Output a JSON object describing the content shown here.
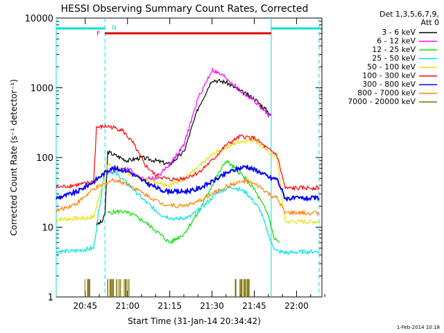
{
  "chart_data": {
    "type": "line",
    "title": "HESSI Observing Summary Count Rates, Corrected",
    "xlabel": "Start Time (31-Jan-14 20:34:42)",
    "ylabel": "Corrected Count Rate (s⁻¹ detector⁻¹)",
    "yscale": "log",
    "ylim": [
      1,
      10000
    ],
    "xlim": [
      "20:34:42",
      "22:09:00"
    ],
    "x_ticks": [
      "20:45",
      "21:00",
      "21:15",
      "21:30",
      "21:45",
      "22:00"
    ],
    "y_ticks": [
      "1",
      "10",
      "100",
      "1000",
      "10000"
    ],
    "legend_header": [
      "Det 1,3,5,6,7,9,",
      "Att 0"
    ],
    "legend_position": "right",
    "footer": "1-Feb-2014 10:18",
    "flags": [
      {
        "label": "F",
        "start": "20:52",
        "end": "21:51",
        "color": "#e00000"
      },
      {
        "label": "N",
        "start": "20:53",
        "end": "20:53",
        "color": "#00e0e0"
      }
    ],
    "night_markers": [
      "20:34:42",
      "20:52",
      "21:51",
      "22:08"
    ],
    "series": [
      {
        "name": "3 - 6 keV",
        "color": "#000000",
        "t": [
          "20:49",
          "20:51",
          "20:52",
          "20:53",
          "21:00",
          "21:05",
          "21:10",
          "21:15",
          "21:20",
          "21:25",
          "21:30",
          "21:35",
          "21:40",
          "21:45",
          "21:50",
          "21:51"
        ],
        "values": [
          11,
          12,
          15,
          120,
          90,
          100,
          90,
          80,
          120,
          500,
          1300,
          1200,
          900,
          700,
          450,
          400
        ]
      },
      {
        "name": "6 - 12 keV",
        "color": "#ff00ff",
        "t": [
          "20:53",
          "21:00",
          "21:05",
          "21:10",
          "21:15",
          "21:20",
          "21:25",
          "21:30",
          "21:35",
          "21:40",
          "21:45",
          "21:50",
          "21:51"
        ],
        "values": [
          60,
          70,
          50,
          50,
          80,
          150,
          700,
          1800,
          1400,
          900,
          650,
          400,
          400
        ]
      },
      {
        "name": "12 - 25 keV",
        "color": "#00e000",
        "t": [
          "20:53",
          "20:58",
          "21:02",
          "21:06",
          "21:10",
          "21:15",
          "21:20",
          "21:25",
          "21:30",
          "21:35",
          "21:40",
          "21:45",
          "21:50",
          "21:52",
          "21:54"
        ],
        "values": [
          16,
          17,
          15,
          12,
          9,
          6,
          8,
          16,
          40,
          90,
          60,
          35,
          15,
          7,
          6
        ]
      },
      {
        "name": "25 - 50 keV",
        "color": "#00e0e0",
        "t": [
          "20:34:42",
          "20:40",
          "20:48",
          "20:52",
          "20:57",
          "21:02",
          "21:07",
          "21:12",
          "21:17",
          "21:22",
          "21:27",
          "21:32",
          "21:37",
          "21:42",
          "21:47",
          "21:51",
          "21:53",
          "21:57",
          "22:00",
          "22:08"
        ],
        "values": [
          4.5,
          4.5,
          5,
          70,
          55,
          35,
          22,
          15,
          13,
          14,
          20,
          32,
          38,
          32,
          18,
          6,
          4.5,
          4.3,
          4.4,
          4.5
        ]
      },
      {
        "name": "50 - 100 keV",
        "color": "#e8e000",
        "t": [
          "20:34:42",
          "20:45",
          "20:48",
          "20:53",
          "21:00",
          "21:05",
          "21:10",
          "21:15",
          "21:20",
          "21:25",
          "21:30",
          "21:35",
          "21:40",
          "21:45",
          "21:50",
          "21:53",
          "21:56",
          "22:08"
        ],
        "values": [
          13,
          13.5,
          14,
          80,
          60,
          50,
          45,
          40,
          50,
          70,
          110,
          140,
          170,
          180,
          120,
          100,
          12,
          12
        ]
      },
      {
        "name": "100 - 300 keV",
        "color": "#ff0000",
        "t": [
          "20:34:42",
          "20:45",
          "20:48",
          "20:49",
          "20:53",
          "20:58",
          "21:02",
          "21:06",
          "21:10",
          "21:15",
          "21:20",
          "21:25",
          "21:30",
          "21:35",
          "21:40",
          "21:45",
          "21:50",
          "21:53",
          "21:56",
          "22:08"
        ],
        "values": [
          37,
          42,
          45,
          270,
          280,
          250,
          160,
          80,
          55,
          48,
          50,
          60,
          90,
          150,
          200,
          190,
          130,
          110,
          36,
          37
        ]
      },
      {
        "name": "300 - 800 keV",
        "color": "#0000ff",
        "t": [
          "20:34:42",
          "20:42",
          "20:48",
          "20:54",
          "21:00",
          "21:06",
          "21:12",
          "21:18",
          "21:24",
          "21:30",
          "21:36",
          "21:42",
          "21:47",
          "21:51",
          "21:53",
          "21:56",
          "22:08"
        ],
        "values": [
          26,
          32,
          45,
          70,
          65,
          45,
          34,
          32,
          34,
          45,
          62,
          75,
          62,
          50,
          50,
          26,
          26
        ]
      },
      {
        "name": "800 - 7000 keV",
        "color": "#ff8000",
        "t": [
          "20:34:42",
          "20:42",
          "20:48",
          "20:55",
          "21:00",
          "21:06",
          "21:12",
          "21:18",
          "21:24",
          "21:30",
          "21:36",
          "21:42",
          "21:47",
          "21:51",
          "21:53",
          "21:56",
          "22:08"
        ],
        "values": [
          17,
          22,
          35,
          48,
          42,
          30,
          22,
          20,
          22,
          30,
          40,
          46,
          38,
          28,
          26,
          16,
          16
        ]
      },
      {
        "name": "7000 - 20000 keV",
        "color": "#807000",
        "t": [
          "20:44",
          "20:45",
          "20:46",
          "20:47",
          "20:52",
          "20:53",
          "20:55",
          "20:57",
          "20:59",
          "21:01",
          "21:02",
          "21:38",
          "21:39",
          "21:40",
          "21:41",
          "21:42",
          "21:43",
          "21:44"
        ],
        "values": [
          1.8,
          1,
          1.8,
          1,
          1.8,
          1,
          1.8,
          1.8,
          1,
          1.8,
          1,
          1.8,
          1,
          1.8,
          1,
          1.8,
          1,
          1.8
        ]
      }
    ]
  }
}
